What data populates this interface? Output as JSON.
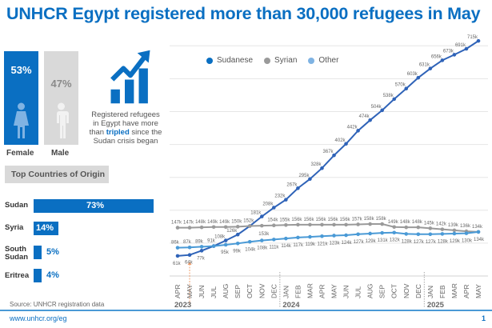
{
  "title": "UNHCR Egypt registered more than 30,000 refugees in May",
  "gender": {
    "female": {
      "label": "Female",
      "percent": "53%"
    },
    "male": {
      "label": "Male",
      "percent": "47%"
    }
  },
  "tripled": {
    "line1": "Registered refugees",
    "line2": "in Egypt have more",
    "line3_pre": "than ",
    "line3_bold": "tripled",
    "line3_post": " since the",
    "line4": "Sudan crisis began"
  },
  "origin": {
    "header": "Top Countries of Origin",
    "items": [
      {
        "name": "Sudan",
        "percent": "73%",
        "value": 73
      },
      {
        "name": "Syria",
        "percent": "14%",
        "value": 14
      },
      {
        "name": "South Sudan",
        "percent": "5%",
        "value": 5
      },
      {
        "name": "Eritrea",
        "percent": "4%",
        "value": 4
      }
    ]
  },
  "source": "Source: UNHCR registration data",
  "footer": {
    "url": "www.unhcr.org/eg",
    "page": "1"
  },
  "colors": {
    "brand": "#0a6fc2",
    "sudanese": "#2f63b8",
    "syrian": "#9a9a9a",
    "other": "#4a9ad6",
    "marker": "#f0a070"
  },
  "chart_data": {
    "type": "line",
    "title": "",
    "xlabel": "",
    "ylabel": "",
    "ylim": [
      0,
      750
    ],
    "grid": true,
    "legend_position": "top-left",
    "x": [
      "APR",
      "MAY",
      "JUN",
      "JUL",
      "AUG",
      "SEP",
      "OCT",
      "NOV",
      "DEC",
      "JAN",
      "FEB",
      "MAR",
      "APR",
      "MAY",
      "JUN",
      "JUL",
      "AUG",
      "SEP",
      "OCT",
      "NOV",
      "DEC",
      "JAN",
      "FEB",
      "MAR",
      "APR",
      "MAY"
    ],
    "years": [
      {
        "label": "2023",
        "start_index": 0
      },
      {
        "label": "2024",
        "start_index": 9
      },
      {
        "label": "2025",
        "start_index": 21
      }
    ],
    "annotation": {
      "type": "vertical-marker",
      "index": 1,
      "note": "Sudan crisis began"
    },
    "series": [
      {
        "name": "Sudanese",
        "color": "#2f63b8",
        "values": [
          61,
          64,
          77,
          91,
          108,
          126,
          152,
          181,
          208,
          232,
          267,
          295,
          328,
          367,
          402,
          442,
          474,
          504,
          538,
          570,
          603,
          631,
          656,
          673,
          691,
          715
        ],
        "labels": [
          "61k",
          "64k",
          "77k",
          "",
          "108k",
          "126k",
          "",
          "181k",
          "208k",
          "232k",
          "267k",
          "295k",
          "328k",
          "367k",
          "402k",
          "442k",
          "474k",
          "504k",
          "538k",
          "570k",
          "603k",
          "631k",
          "656k",
          "673k",
          "691k",
          "715k"
        ]
      },
      {
        "name": "Syrian",
        "color": "#9a9a9a",
        "values": [
          147,
          147,
          148,
          149,
          149,
          150,
          152,
          153,
          154,
          155,
          156,
          156,
          156,
          156,
          156,
          157,
          158,
          158,
          149,
          148,
          148,
          145,
          142,
          139,
          136,
          134
        ],
        "labels": [
          "147k",
          "147k",
          "148k",
          "149k",
          "149k",
          "150k",
          "152k",
          "153k",
          "154k",
          "155k",
          "156k",
          "156k",
          "156k",
          "156k",
          "156k",
          "157k",
          "158k",
          "158k",
          "149k",
          "148k",
          "148k",
          "145k",
          "142k",
          "139k",
          "136k",
          "134k"
        ]
      },
      {
        "name": "Other",
        "color": "#4a9ad6",
        "values": [
          86,
          87,
          89,
          91,
          95,
          99,
          104,
          108,
          111,
          114,
          117,
          119,
          121,
          123,
          124,
          127,
          129,
          131,
          132,
          128,
          127,
          127,
          128,
          129,
          130,
          134
        ],
        "labels": [
          "86k",
          "87k",
          "89k",
          "91k",
          "95k",
          "99k",
          "104k",
          "108k",
          "111k",
          "114k",
          "117k",
          "119k",
          "121k",
          "123k",
          "124k",
          "127k",
          "129k",
          "131k",
          "132k",
          "128k",
          "127k",
          "127k",
          "128k",
          "129k",
          "130k",
          "134k"
        ]
      }
    ]
  }
}
